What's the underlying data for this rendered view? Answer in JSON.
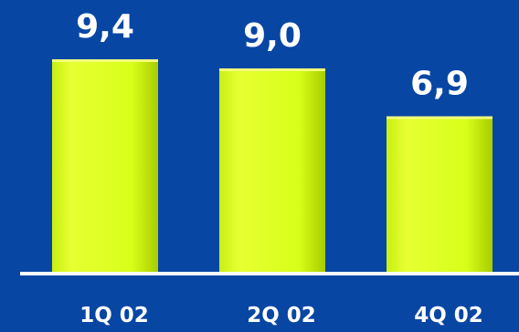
{
  "chart_data": {
    "type": "bar",
    "categories": [
      "1Q 02",
      "2Q 02",
      "4Q 02"
    ],
    "values": [
      9.4,
      9.0,
      6.9
    ],
    "value_labels": [
      "9,4",
      "9,0",
      "6,9"
    ],
    "title": "",
    "xlabel": "",
    "ylabel": "",
    "ylim": [
      0,
      9.4
    ],
    "grid": false,
    "legend": "none",
    "colors": {
      "background": "#0846a4",
      "bar": "#d8ff1a",
      "bar_highlight": "#f2ff7a",
      "bar_shade": "#a8cc00",
      "axis": "#ffffff",
      "text": "#ffffff"
    }
  }
}
